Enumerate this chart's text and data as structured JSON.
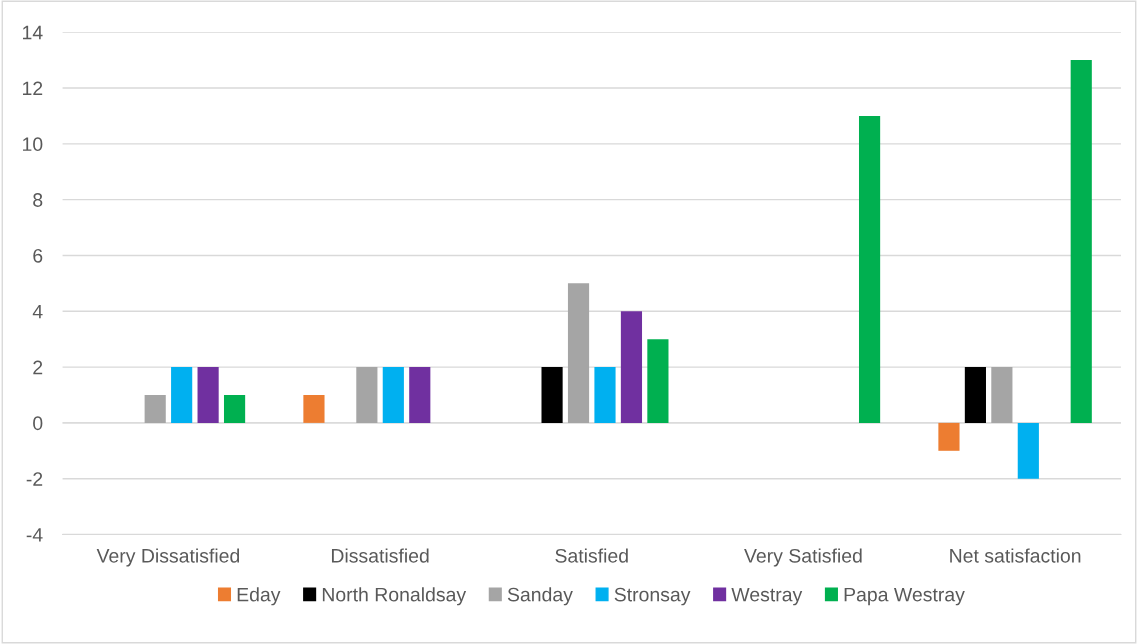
{
  "chart_data": {
    "type": "bar",
    "categories": [
      "Very Dissatisfied",
      "Dissatisfied",
      "Satisfied",
      "Very Satisfied",
      "Net satisfaction"
    ],
    "series": [
      {
        "name": "Eday",
        "color": "#ed7d31",
        "values": [
          0,
          1,
          0,
          0,
          -1
        ]
      },
      {
        "name": "North Ronaldsay",
        "color": "#000000",
        "values": [
          0,
          0,
          2,
          0,
          2
        ]
      },
      {
        "name": "Sanday",
        "color": "#a5a5a5",
        "values": [
          1,
          2,
          5,
          0,
          2
        ]
      },
      {
        "name": "Stronsay",
        "color": "#00b0f0",
        "values": [
          2,
          2,
          2,
          0,
          -2
        ]
      },
      {
        "name": "Westray",
        "color": "#7030a0",
        "values": [
          2,
          2,
          4,
          0,
          0
        ]
      },
      {
        "name": "Papa Westray",
        "color": "#00b050",
        "values": [
          1,
          0,
          3,
          11,
          13
        ]
      }
    ],
    "ylim": [
      -4,
      14
    ],
    "yticks": [
      -4,
      -2,
      0,
      2,
      4,
      6,
      8,
      10,
      12,
      14
    ],
    "grid": "y",
    "legend": "bottom"
  }
}
